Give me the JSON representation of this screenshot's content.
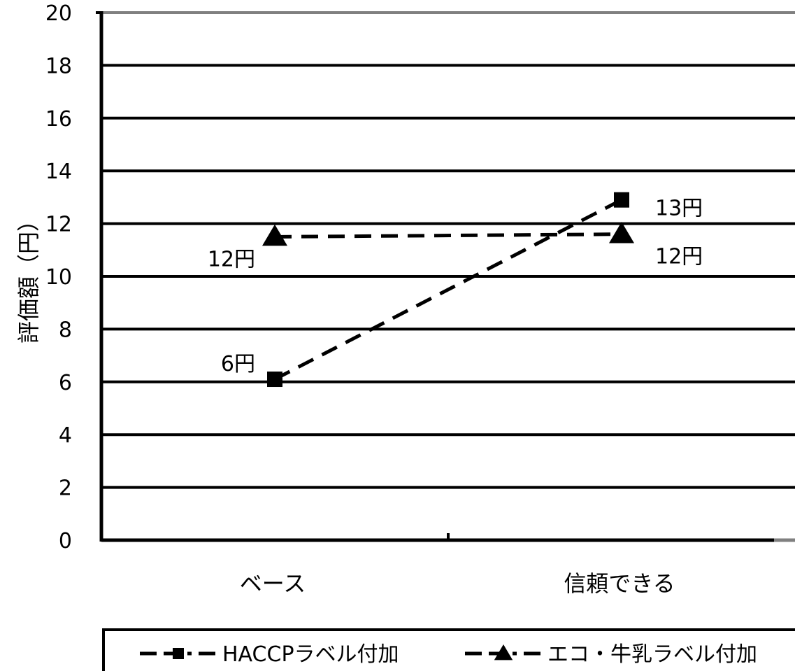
{
  "chart_data": {
    "type": "line",
    "categories": [
      "ベース",
      "信頼できる"
    ],
    "ylabel": "評価額（円）",
    "ylim": [
      0,
      20
    ],
    "yticks": [
      0,
      2,
      4,
      6,
      8,
      10,
      12,
      14,
      16,
      18,
      20
    ],
    "grid": true,
    "legend": "bottom",
    "series": [
      {
        "name": "HACCPラベル付加",
        "values": [
          6.1,
          12.9
        ],
        "labels": [
          "6円",
          "13円"
        ],
        "marker": "square"
      },
      {
        "name": "エコ・牛乳ラベル付加",
        "values": [
          11.5,
          11.6
        ],
        "labels": [
          "12円",
          "12円"
        ],
        "marker": "triangle"
      }
    ]
  }
}
